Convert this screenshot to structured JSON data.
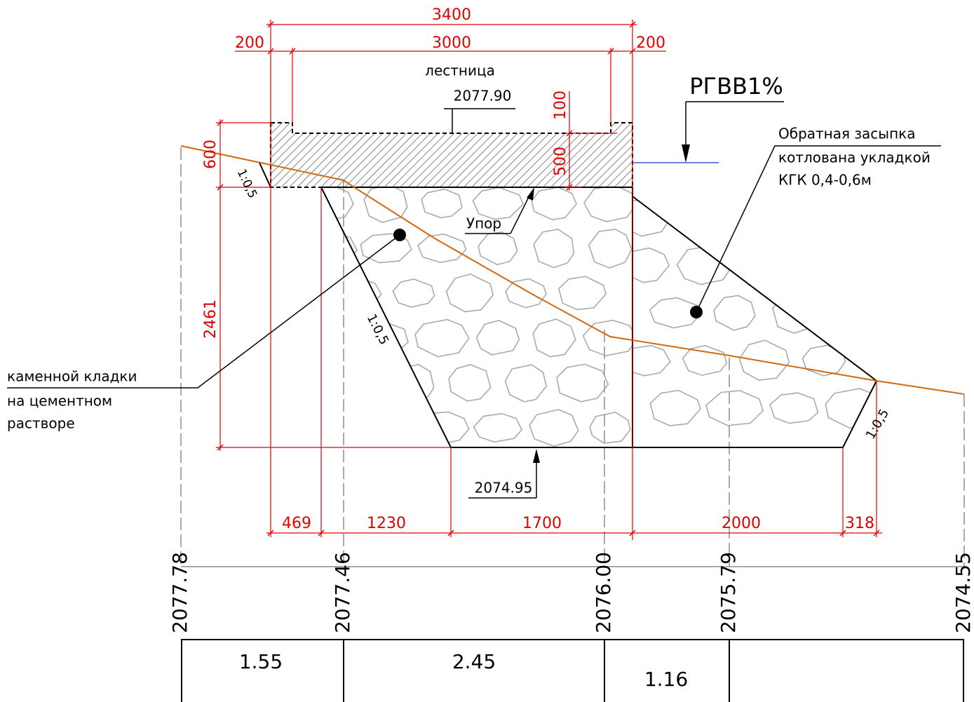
{
  "dimensions": {
    "overall": "3400",
    "stair": "3000",
    "left_offset": "200",
    "right_offset": "200",
    "step_height": "100",
    "slab_height": "500",
    "left_height": "600",
    "wall_height": "2461",
    "bottom": [
      "469",
      "1230",
      "1700",
      "2000",
      "318"
    ]
  },
  "labels": {
    "stair": "лестница",
    "stair_level": "2077.90",
    "stop": "Упор",
    "base_level": "2074.95",
    "water_level": "РГВВ1%",
    "slopes": [
      "1:0,5",
      "1:0,5",
      "1:0,5"
    ]
  },
  "notes": {
    "backfill": [
      "Обратная засыпка",
      "котлована укладкой",
      "КГК 0,4-0,6м"
    ],
    "masonry": [
      "каменной кладки",
      "на цементном",
      "растворе"
    ]
  },
  "profile": {
    "elevations": [
      "2077.78",
      "2077.46",
      "2076.00",
      "2075.79",
      "2074.55"
    ],
    "table": [
      "1.55",
      "2.45",
      "1.16"
    ]
  }
}
